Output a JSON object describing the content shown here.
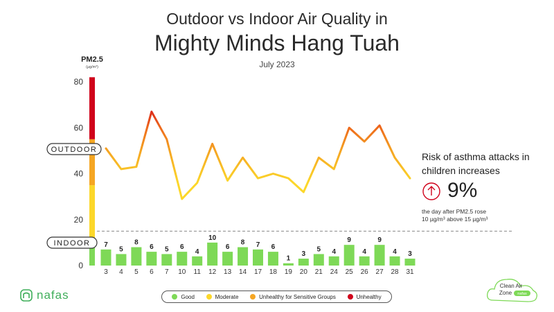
{
  "header": {
    "title_line1": "Outdoor vs Indoor Air Quality in",
    "title_line2": "Mighty Minds Hang Tuah",
    "subtitle": "July 2023"
  },
  "axis": {
    "unit_label": "PM2.5",
    "unit_sub": "(µg/m³)",
    "outdoor_label": "OUTDOOR",
    "indoor_label": "INDOOR"
  },
  "risk": {
    "title": "Risk of asthma attacks in children increases",
    "value": "9%",
    "note_line1": "the day after PM2.5 rose",
    "note_line2": "10 µg/m³ above 15 µg/m³"
  },
  "legend": {
    "items": [
      {
        "label": "Good",
        "color": "#7ed957"
      },
      {
        "label": "Moderate",
        "color": "#fcd72a"
      },
      {
        "label": "Unhealthy for Sensitive Groups",
        "color": "#f5a623"
      },
      {
        "label": "Unhealthy",
        "color": "#d0021b"
      }
    ]
  },
  "brand": {
    "name": "nafas"
  },
  "badge": {
    "line1": "Clean Air",
    "line2": "Zone",
    "tag": "nafas"
  },
  "chart_data": {
    "type": "line",
    "categories": [
      "3",
      "4",
      "5",
      "6",
      "7",
      "10",
      "11",
      "12",
      "13",
      "14",
      "17",
      "18",
      "19",
      "20",
      "21",
      "24",
      "25",
      "26",
      "27",
      "28",
      "31"
    ],
    "ylim": [
      0,
      80
    ],
    "yticks": [
      0,
      20,
      40,
      60,
      80
    ],
    "threshold": 15,
    "series": [
      {
        "name": "OUTDOOR",
        "type": "line",
        "values": [
          51,
          42,
          43,
          67,
          55,
          29,
          36,
          53,
          37,
          47,
          38,
          40,
          38,
          32,
          47,
          42,
          60,
          54,
          61,
          47,
          38
        ]
      },
      {
        "name": "INDOOR",
        "type": "bar",
        "color": "#7ed957",
        "values": [
          7,
          5,
          8,
          6,
          5,
          6,
          4,
          10,
          6,
          8,
          7,
          6,
          1,
          3,
          5,
          4,
          9,
          4,
          9,
          4,
          3
        ]
      }
    ],
    "scale_bands": [
      {
        "from": 0,
        "to": 12,
        "color": "#7ed957"
      },
      {
        "from": 12,
        "to": 35,
        "color": "#fcd72a"
      },
      {
        "from": 35,
        "to": 55,
        "color": "#f5a623"
      },
      {
        "from": 55,
        "to": 82,
        "color": "#d0021b"
      }
    ]
  }
}
